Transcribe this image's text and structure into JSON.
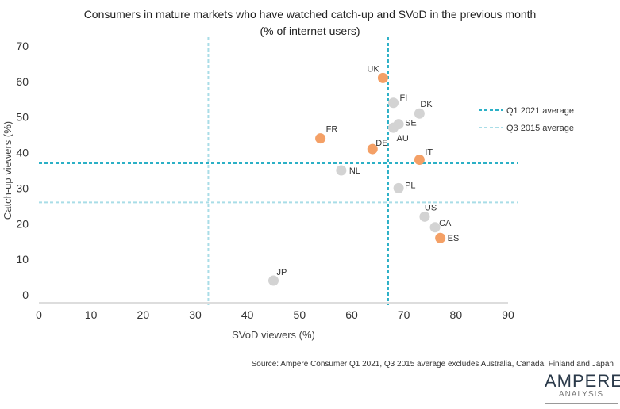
{
  "chart_data": {
    "type": "scatter",
    "title": "Consumers in mature markets who have watched catch-up and SVoD in the previous month",
    "subtitle": "(% of internet users)",
    "xlabel": "SVoD viewers (%)",
    "ylabel": "Catch-up viewers (%)",
    "xlim": [
      0,
      90
    ],
    "ylim": [
      0,
      70
    ],
    "xticks": [
      0,
      10,
      20,
      30,
      40,
      50,
      60,
      70,
      80,
      90
    ],
    "yticks": [
      0,
      10,
      20,
      30,
      40,
      50,
      60,
      70
    ],
    "grid": false,
    "points": [
      {
        "label": "UK",
        "x": 66,
        "y": 61,
        "highlight": true
      },
      {
        "label": "FI",
        "x": 68,
        "y": 54,
        "highlight": false
      },
      {
        "label": "DK",
        "x": 73,
        "y": 51,
        "highlight": false
      },
      {
        "label": "SE",
        "x": 69,
        "y": 48,
        "highlight": false
      },
      {
        "label": "AU",
        "x": 68,
        "y": 47,
        "highlight": false
      },
      {
        "label": "FR",
        "x": 54,
        "y": 44,
        "highlight": true
      },
      {
        "label": "DE",
        "x": 64,
        "y": 41,
        "highlight": true
      },
      {
        "label": "IT",
        "x": 73,
        "y": 38,
        "highlight": true
      },
      {
        "label": "NL",
        "x": 58,
        "y": 35,
        "highlight": false
      },
      {
        "label": "PL",
        "x": 69,
        "y": 30,
        "highlight": false
      },
      {
        "label": "US",
        "x": 74,
        "y": 22,
        "highlight": false
      },
      {
        "label": "CA",
        "x": 76,
        "y": 19,
        "highlight": false
      },
      {
        "label": "ES",
        "x": 77,
        "y": 16,
        "highlight": true
      },
      {
        "label": "JP",
        "x": 45,
        "y": 4,
        "highlight": false
      }
    ],
    "reference_lines": [
      {
        "name": "Q1 2021 average",
        "x": 67,
        "y": 37,
        "color": "#2BB0C6"
      },
      {
        "name": "Q3 2015 average",
        "x": 32.5,
        "y": 26,
        "color": "#A9DDE7"
      }
    ],
    "colors": {
      "highlight": "#F4A066",
      "default": "#D3D3D3"
    },
    "legend_position": "right"
  },
  "source": "Source: Ampere Consumer Q1 2021, Q3 2015 average excludes Australia, Canada, Finland and Japan",
  "logo": {
    "name": "AMPERE",
    "sub": "ANALYSIS"
  }
}
